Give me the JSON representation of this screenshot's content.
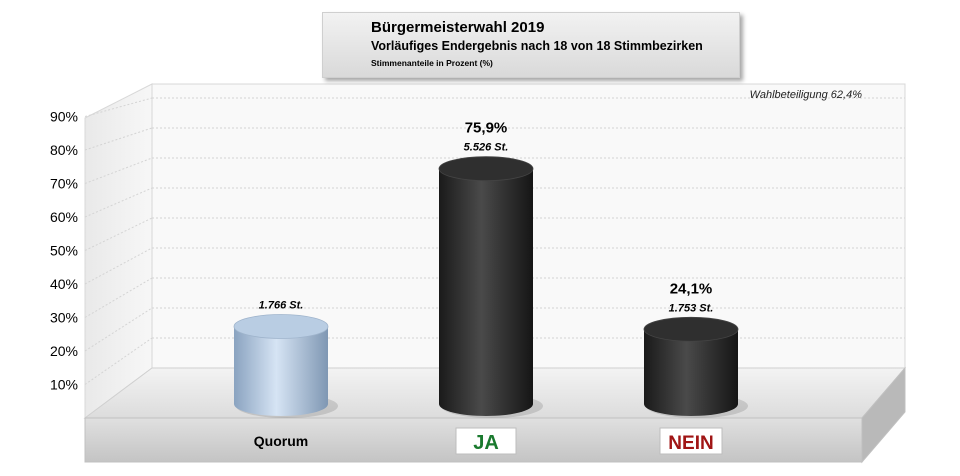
{
  "title": {
    "line1": "Bürgermeisterwahl 2019",
    "line2": "Vorläufiges Endergebnis nach 18 von 18 Stimmbezirken",
    "line3": "Stimmenanteile in Prozent (%)"
  },
  "annotation": "Wahlbeteiligung 62,4%",
  "colors": {
    "quorum_bar": "#b9cde3",
    "ja_bar": "#2a2a2a",
    "nein_bar": "#2a2a2a",
    "ja_label": "#1a7a2e",
    "nein_label": "#a01515"
  },
  "chart_data": {
    "type": "bar",
    "style": "3d-cylinder",
    "categories": [
      "Quorum",
      "JA",
      "NEIN"
    ],
    "values": [
      25,
      75.9,
      24.1
    ],
    "value_labels": [
      "",
      "75,9%",
      "24,1%"
    ],
    "vote_labels": [
      "1.766 St.",
      "5.526 St.",
      "1.753 St."
    ],
    "ytick_labels": [
      "10%",
      "20%",
      "30%",
      "40%",
      "50%",
      "60%",
      "70%",
      "80%",
      "90%"
    ],
    "ylim": [
      0,
      90
    ],
    "grid": true,
    "xlabel": "",
    "ylabel": ""
  }
}
